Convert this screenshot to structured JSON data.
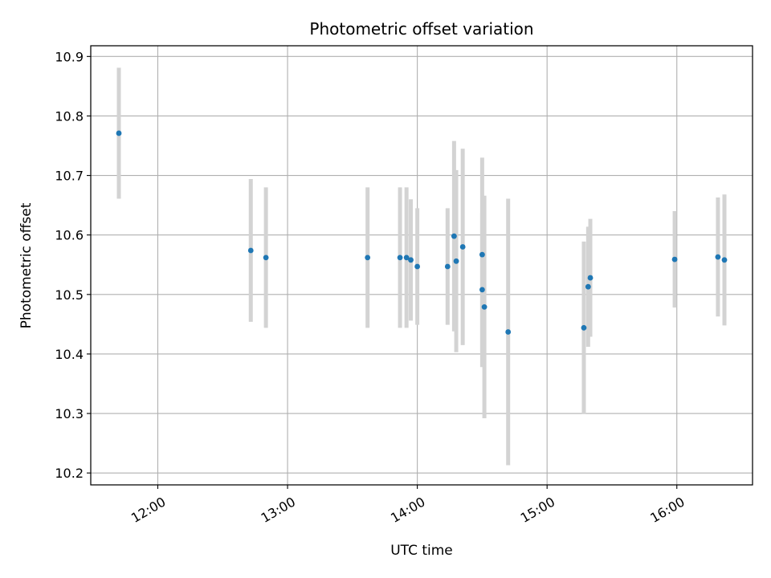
{
  "chart_data": {
    "type": "scatter",
    "title": "Photometric offset variation",
    "xlabel": "UTC time",
    "ylabel": "Photometric offset",
    "x_ticks": [
      "12:00",
      "13:00",
      "14:00",
      "15:00",
      "16:00"
    ],
    "y_ticks": [
      "10.2",
      "10.3",
      "10.4",
      "10.5",
      "10.6",
      "10.7",
      "10.8",
      "10.9"
    ],
    "xlim": [
      "11:29",
      "16:35"
    ],
    "ylim": [
      10.18,
      10.918
    ],
    "grid": true,
    "errorbar_color": "#d3d3d3",
    "point_color": "#1f77b4",
    "points": [
      {
        "time": "11:42",
        "y": 10.771,
        "err": 0.11
      },
      {
        "time": "12:43",
        "y": 10.574,
        "err": 0.12
      },
      {
        "time": "12:50",
        "y": 10.562,
        "err": 0.118
      },
      {
        "time": "13:37",
        "y": 10.562,
        "err": 0.118
      },
      {
        "time": "13:52",
        "y": 10.562,
        "err": 0.118
      },
      {
        "time": "13:55",
        "y": 10.562,
        "err": 0.118
      },
      {
        "time": "13:57",
        "y": 10.558,
        "err": 0.102
      },
      {
        "time": "14:00",
        "y": 10.547,
        "err": 0.098
      },
      {
        "time": "14:14",
        "y": 10.547,
        "err": 0.098
      },
      {
        "time": "14:17",
        "y": 10.598,
        "err": 0.16
      },
      {
        "time": "14:18",
        "y": 10.556,
        "err": 0.153
      },
      {
        "time": "14:21",
        "y": 10.58,
        "err": 0.165
      },
      {
        "time": "14:30",
        "y": 10.508,
        "err": 0.13
      },
      {
        "time": "14:30",
        "y": 10.567,
        "err": 0.163
      },
      {
        "time": "14:31",
        "y": 10.479,
        "err": 0.187
      },
      {
        "time": "14:42",
        "y": 10.437,
        "err": 0.224
      },
      {
        "time": "15:17",
        "y": 10.444,
        "err": 0.145
      },
      {
        "time": "15:19",
        "y": 10.513,
        "err": 0.101
      },
      {
        "time": "15:20",
        "y": 10.528,
        "err": 0.099
      },
      {
        "time": "15:59",
        "y": 10.559,
        "err": 0.081
      },
      {
        "time": "16:19",
        "y": 10.563,
        "err": 0.1
      },
      {
        "time": "16:22",
        "y": 10.558,
        "err": 0.11
      }
    ]
  }
}
